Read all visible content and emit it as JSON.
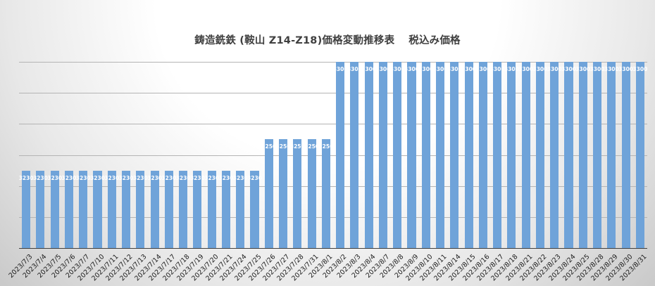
{
  "chart_data": {
    "type": "bar",
    "title": "鋳造銑鉄 (鞍山 Z14-Z18)価格変動推移表　 税込み価格",
    "xlabel": "",
    "ylabel": "",
    "ylim": [
      3180,
      3300
    ],
    "grid": true,
    "gridline_step": 20,
    "legend": "none",
    "bar_color": "#6fa3d9",
    "categories": [
      "2023/7/3",
      "2023/7/4",
      "2023/7/5",
      "2023/7/6",
      "2023/7/7",
      "2023/7/10",
      "2023/7/11",
      "2023/7/12",
      "2023/7/13",
      "2023/7/14",
      "2023/7/17",
      "2023/7/18",
      "2023/7/19",
      "2023/7/20",
      "2023/7/21",
      "2023/7/24",
      "2023/7/25",
      "2023/7/26",
      "2023/7/27",
      "2023/7/28",
      "2023/7/31",
      "2023/8/1",
      "2023/8/2",
      "2023/8/3",
      "2023/8/4",
      "2023/8/7",
      "2023/8/8",
      "2023/8/9",
      "2023/8/10",
      "2023/8/11",
      "2023/8/14",
      "2023/8/15",
      "2023/8/16",
      "2023/8/17",
      "2023/8/18",
      "2023/8/21",
      "2023/8/22",
      "2023/8/23",
      "2023/8/24",
      "2023/8/25",
      "2023/8/28",
      "2023/8/29",
      "2023/8/30",
      "2023/8/31"
    ],
    "values": [
      3230,
      3230,
      3230,
      3230,
      3230,
      3230,
      3230,
      3230,
      3230,
      3230,
      3230,
      3230,
      3230,
      3230,
      3230,
      3230,
      3230,
      3250,
      3250,
      3250,
      3250,
      3250,
      3300,
      3300,
      3300,
      3300,
      3300,
      3300,
      3300,
      3300,
      3300,
      3300,
      3300,
      3300,
      3300,
      3300,
      3300,
      3300,
      3300,
      3300,
      3300,
      3300,
      3300,
      3300
    ]
  }
}
